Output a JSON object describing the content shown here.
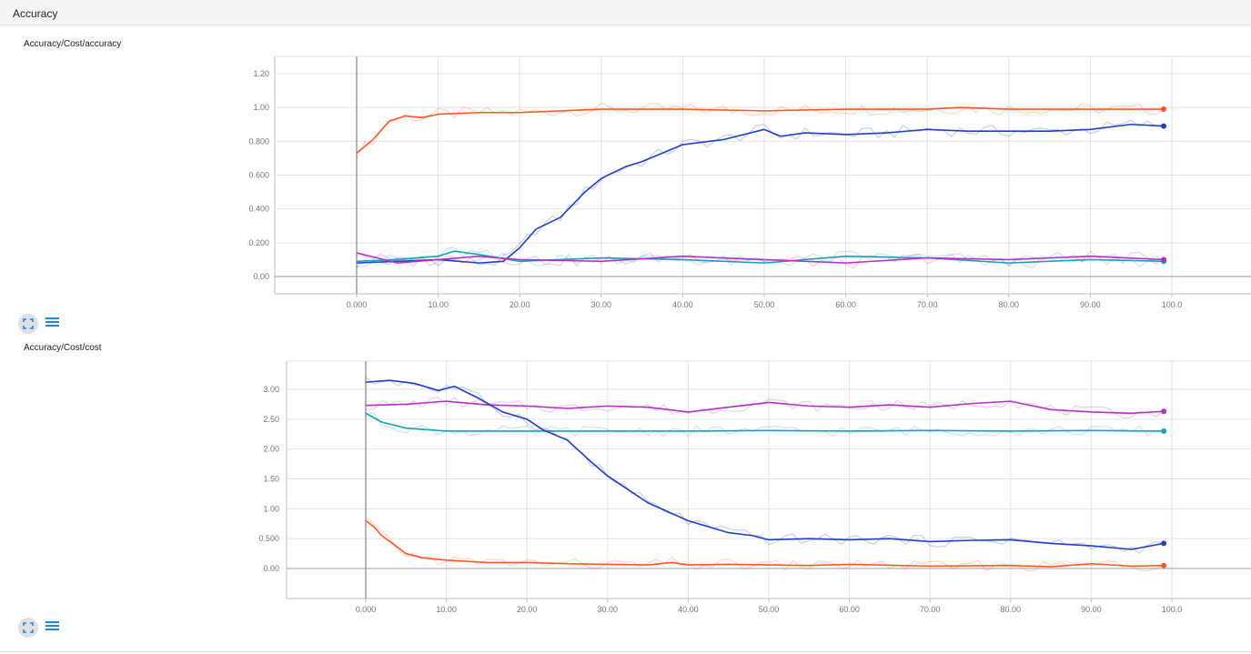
{
  "header": {
    "title": "Accuracy"
  },
  "icons": {
    "fullscreen": "fullscreen-icon",
    "data_toggle": "list-icon"
  },
  "colors": {
    "orange": "#ff5722",
    "blue": "#1e40c8",
    "teal": "#12a4b8",
    "magenta": "#b62fc8"
  },
  "chart_data": [
    {
      "type": "line",
      "title": "Accuracy/Cost/accuracy",
      "xlim": [
        0,
        100
      ],
      "ylim": [
        0,
        1.2
      ],
      "xticks": [
        "0.000",
        "10.00",
        "20.00",
        "30.00",
        "40.00",
        "50.00",
        "60.00",
        "70.00",
        "80.00",
        "90.00",
        "100.0"
      ],
      "yticks": [
        "0.00",
        "0.200",
        "0.400",
        "0.600",
        "0.800",
        "1.00",
        "1.20"
      ],
      "grid": true,
      "series": [
        {
          "color": "#ff5722",
          "x": [
            0,
            2,
            4,
            6,
            8,
            10,
            15,
            20,
            30,
            40,
            50,
            60,
            70,
            74,
            80,
            90,
            99
          ],
          "y": [
            0.73,
            0.81,
            0.92,
            0.95,
            0.94,
            0.96,
            0.97,
            0.97,
            0.99,
            0.99,
            0.98,
            0.99,
            0.99,
            1.0,
            0.99,
            0.99,
            0.99
          ]
        },
        {
          "color": "#1e40c8",
          "x": [
            0,
            5,
            10,
            15,
            18,
            20,
            22,
            25,
            28,
            30,
            33,
            35,
            38,
            40,
            45,
            50,
            52,
            55,
            60,
            65,
            70,
            75,
            80,
            85,
            90,
            95,
            99
          ],
          "y": [
            0.08,
            0.09,
            0.1,
            0.08,
            0.09,
            0.17,
            0.28,
            0.35,
            0.5,
            0.58,
            0.65,
            0.68,
            0.74,
            0.78,
            0.81,
            0.87,
            0.83,
            0.85,
            0.84,
            0.85,
            0.87,
            0.86,
            0.86,
            0.86,
            0.87,
            0.9,
            0.89
          ]
        },
        {
          "color": "#12a4b8",
          "x": [
            0,
            5,
            10,
            12,
            15,
            20,
            30,
            40,
            50,
            60,
            70,
            80,
            90,
            99
          ],
          "y": [
            0.09,
            0.1,
            0.12,
            0.15,
            0.13,
            0.09,
            0.11,
            0.1,
            0.08,
            0.12,
            0.11,
            0.08,
            0.1,
            0.09
          ]
        },
        {
          "color": "#b62fc8",
          "x": [
            0,
            5,
            10,
            15,
            20,
            30,
            40,
            50,
            60,
            70,
            80,
            90,
            99
          ],
          "y": [
            0.14,
            0.08,
            0.1,
            0.12,
            0.1,
            0.09,
            0.12,
            0.1,
            0.08,
            0.11,
            0.1,
            0.12,
            0.1
          ]
        }
      ]
    },
    {
      "type": "line",
      "title": "Accuracy/Cost/cost",
      "xlim": [
        0,
        100
      ],
      "ylim": [
        0,
        3.3
      ],
      "xticks": [
        "0.000",
        "10.00",
        "20.00",
        "30.00",
        "40.00",
        "50.00",
        "60.00",
        "70.00",
        "80.00",
        "90.00",
        "100.0"
      ],
      "yticks": [
        "0.00",
        "0.500",
        "1.00",
        "1.50",
        "2.00",
        "2.50",
        "3.00"
      ],
      "grid": true,
      "series": [
        {
          "color": "#b62fc8",
          "x": [
            0,
            5,
            10,
            15,
            20,
            25,
            30,
            35,
            40,
            45,
            50,
            55,
            60,
            65,
            70,
            75,
            80,
            85,
            90,
            95,
            99
          ],
          "y": [
            2.73,
            2.75,
            2.8,
            2.74,
            2.72,
            2.68,
            2.72,
            2.7,
            2.62,
            2.7,
            2.78,
            2.72,
            2.7,
            2.74,
            2.7,
            2.76,
            2.8,
            2.66,
            2.62,
            2.6,
            2.63
          ]
        },
        {
          "color": "#12a4b8",
          "x": [
            0,
            2,
            5,
            10,
            20,
            30,
            40,
            50,
            60,
            70,
            80,
            90,
            99
          ],
          "y": [
            2.6,
            2.45,
            2.35,
            2.3,
            2.3,
            2.3,
            2.3,
            2.31,
            2.3,
            2.31,
            2.3,
            2.31,
            2.3
          ]
        },
        {
          "color": "#1e40c8",
          "x": [
            0,
            3,
            6,
            9,
            11,
            14,
            17,
            20,
            22,
            25,
            28,
            30,
            33,
            35,
            38,
            40,
            43,
            45,
            48,
            50,
            55,
            60,
            65,
            70,
            75,
            80,
            85,
            90,
            95,
            99
          ],
          "y": [
            3.12,
            3.15,
            3.1,
            2.98,
            3.05,
            2.85,
            2.62,
            2.5,
            2.32,
            2.15,
            1.78,
            1.55,
            1.28,
            1.1,
            0.92,
            0.8,
            0.68,
            0.6,
            0.55,
            0.48,
            0.5,
            0.48,
            0.5,
            0.45,
            0.47,
            0.48,
            0.42,
            0.38,
            0.32,
            0.42
          ]
        },
        {
          "color": "#ff5722",
          "x": [
            0,
            1,
            2,
            3,
            5,
            7,
            10,
            15,
            20,
            25,
            30,
            35,
            38,
            40,
            45,
            50,
            55,
            60,
            70,
            80,
            85,
            90,
            95,
            99
          ],
          "y": [
            0.8,
            0.7,
            0.55,
            0.45,
            0.25,
            0.18,
            0.14,
            0.1,
            0.1,
            0.08,
            0.07,
            0.06,
            0.1,
            0.06,
            0.07,
            0.06,
            0.05,
            0.07,
            0.04,
            0.05,
            0.03,
            0.08,
            0.04,
            0.05
          ]
        }
      ]
    }
  ]
}
